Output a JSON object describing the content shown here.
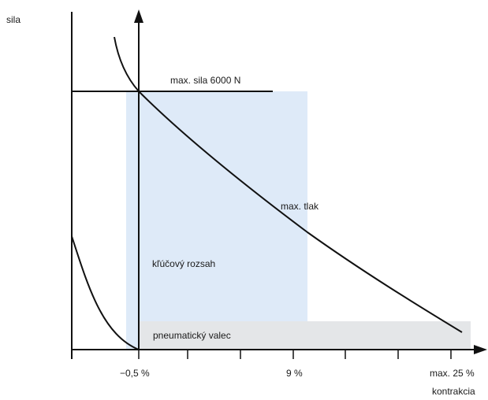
{
  "labels": {
    "y_axis": "sila",
    "x_axis": "kontrakcia",
    "max_force": "max. sila 6000 N",
    "max_pressure": "max. tlak",
    "key_range": "kľúčový rozsah",
    "pneumatic_cylinder": "pneumatický valec"
  },
  "x_ticks": [
    "−0,5 %",
    "9 %",
    "max. 25 %"
  ],
  "colors": {
    "key_range_fill": "#deeaf8",
    "pneumatic_fill": "#e4e6e8",
    "line": "#111111"
  }
}
